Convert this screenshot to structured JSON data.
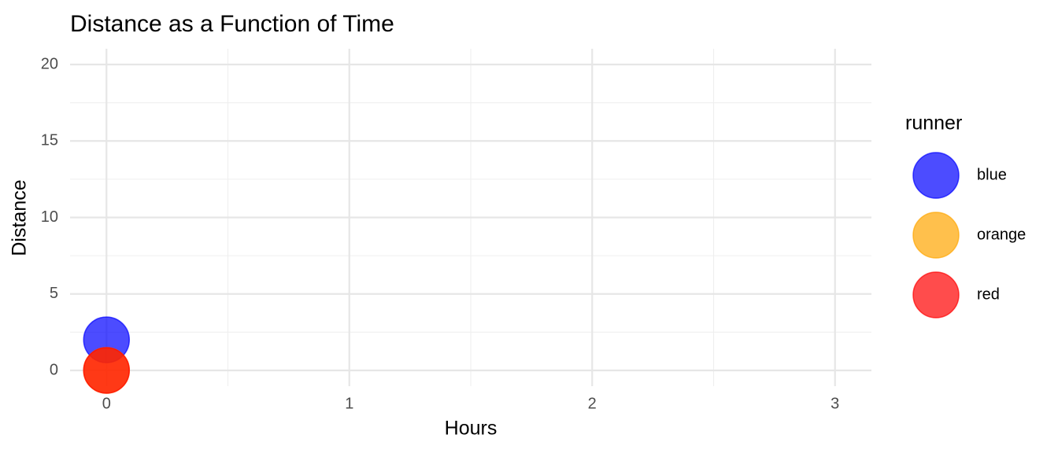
{
  "chart_data": {
    "type": "scatter",
    "title": "Distance as a Function of Time",
    "x_label": "Hours",
    "y_label": "Distance",
    "legend_title": "runner",
    "series": [
      {
        "name": "blue",
        "color": "#0000ff",
        "x": [
          0
        ],
        "values": [
          2
        ]
      },
      {
        "name": "orange",
        "color": "#ffa500",
        "x": [
          0
        ],
        "values": [
          0
        ]
      },
      {
        "name": "red",
        "color": "#ff0000",
        "x": [
          0
        ],
        "values": [
          0
        ]
      }
    ],
    "opacity": 0.7,
    "xlim": [
      -0.15,
      3.15
    ],
    "xticks": [
      0,
      1,
      2,
      3
    ],
    "ylim": [
      -1.03,
      21.03
    ],
    "yticks": [
      0,
      5,
      10,
      15,
      20
    ],
    "grid": true,
    "legend": "right"
  }
}
